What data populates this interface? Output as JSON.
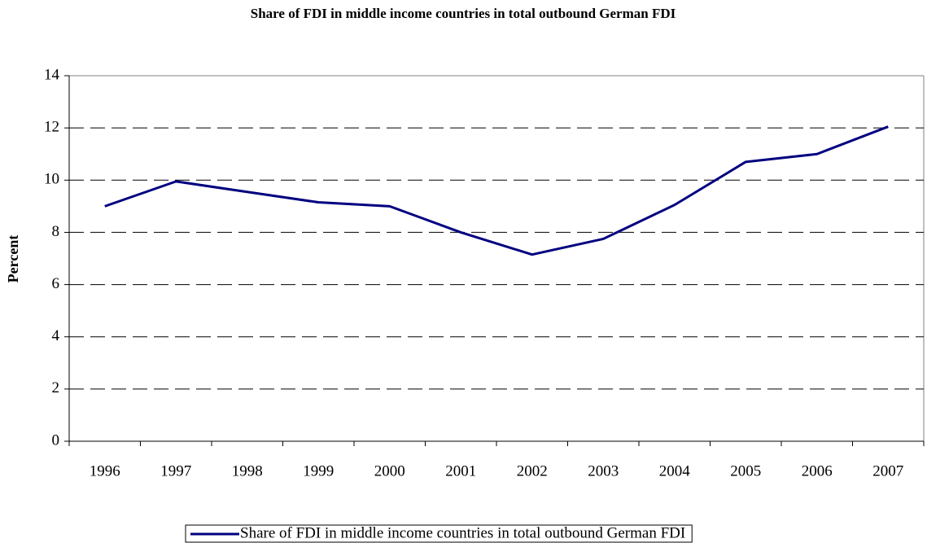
{
  "chart_data": {
    "type": "line",
    "title": "Share of FDI in middle income countries in total outbound German FDI",
    "y_label": "Percent",
    "categories": [
      "1996",
      "1997",
      "1998",
      "1999",
      "2000",
      "2001",
      "2002",
      "2003",
      "2004",
      "2005",
      "2006",
      "2007"
    ],
    "series": [
      {
        "name": "Share of FDI in middle income countries in total outbound German FDI",
        "color": "#000080",
        "values": [
          9.0,
          9.95,
          9.55,
          9.15,
          9.0,
          8.0,
          7.15,
          7.75,
          9.05,
          10.7,
          11.0,
          12.05
        ]
      }
    ],
    "ylim": [
      0,
      14
    ],
    "yticks": [
      0,
      2,
      4,
      6,
      8,
      10,
      12,
      14
    ],
    "grid": true,
    "legend": "bottom"
  }
}
